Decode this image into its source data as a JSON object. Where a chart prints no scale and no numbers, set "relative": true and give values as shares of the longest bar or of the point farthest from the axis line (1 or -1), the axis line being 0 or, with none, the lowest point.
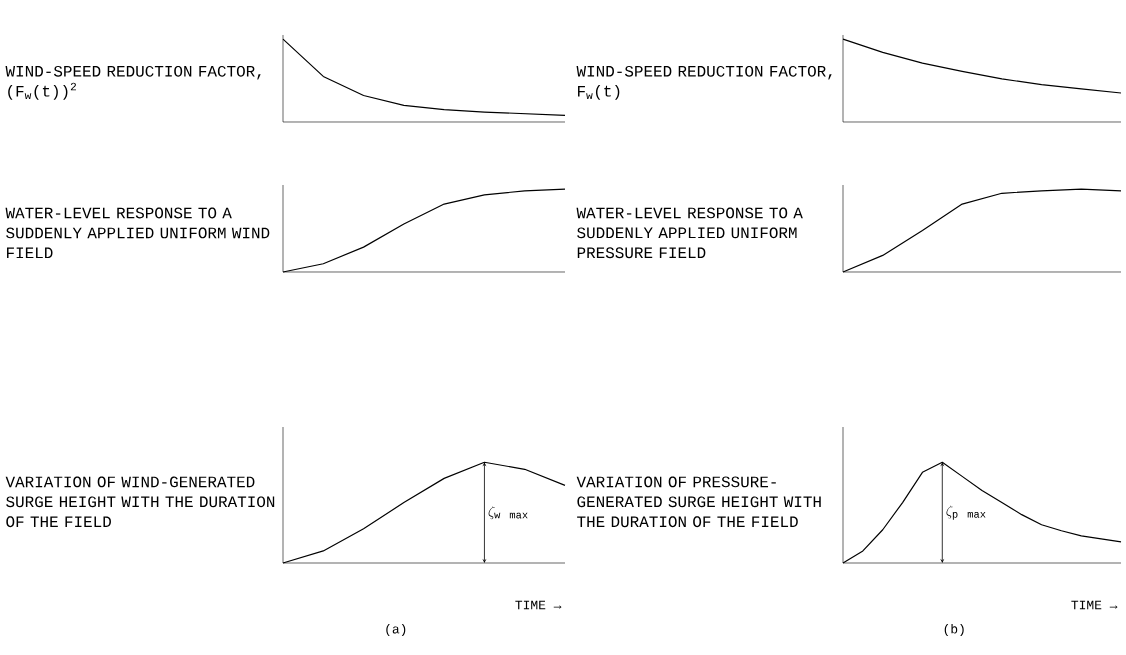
{
  "chart_data": [
    {
      "type": "line",
      "relative": true,
      "color": "#000000",
      "ylabel": "WIND-SPEED REDUCTION FACTOR, (F$_{w}$(t))$^{2}$",
      "categories": [
        null,
        null,
        null,
        null,
        null,
        null,
        null,
        null
      ],
      "values": [
        1.0,
        0.55,
        0.32,
        0.2,
        0.15,
        0.12,
        0.1,
        0.08
      ]
    },
    {
      "type": "line",
      "relative": true,
      "color": "#000000",
      "ylabel": "WIND-SPEED REDUCTION FACTOR, F$_{w}$(t)",
      "categories": [
        null,
        null,
        null,
        null,
        null,
        null,
        null,
        null
      ],
      "values": [
        1.0,
        0.84,
        0.71,
        0.61,
        0.52,
        0.45,
        0.4,
        0.35
      ]
    },
    {
      "type": "line",
      "relative": true,
      "color": "#000000",
      "ylabel": "WATER-LEVEL RESPONSE TO A SUDDENLY APPLIED UNIFORM WIND FIELD",
      "categories": [
        null,
        null,
        null,
        null,
        null,
        null,
        null,
        null
      ],
      "values": [
        0,
        0.1,
        0.3,
        0.58,
        0.82,
        0.93,
        0.98,
        1.0
      ]
    },
    {
      "type": "line",
      "relative": true,
      "color": "#000000",
      "ylabel": "WATER-LEVEL RESPONSE TO A SUDDENLY APPLIED UNIFORM PRESSURE FIELD",
      "categories": [
        null,
        null,
        null,
        null,
        null,
        null,
        null,
        null
      ],
      "values": [
        0,
        0.2,
        0.5,
        0.82,
        0.95,
        0.98,
        1.0,
        0.98
      ]
    },
    {
      "type": "line",
      "relative": true,
      "color": "#000000",
      "ylabel": "VARIATION OF WIND-GENERATED SURGE HEIGHT WITH THE DURATION OF THE FIELD",
      "xlabel": "TIME →",
      "categories": [
        null,
        null,
        null,
        null,
        null,
        null,
        null,
        null
      ],
      "values": [
        0,
        0.12,
        0.34,
        0.6,
        0.84,
        1.0,
        0.93,
        0.77
      ],
      "annotations": [
        {
          "text": "\\zeta_{\\mathrm{w\\ max}}"
        },
        "(a)"
      ]
    },
    {
      "type": "line",
      "relative": true,
      "color": "#000000",
      "ylabel": "VARIATION OF PRESSURE-GENERATED SURGE HEIGHT WITH THE DURATION OF THE FIELD",
      "xlabel": "TIME →",
      "categories": [
        null,
        null,
        null,
        null,
        null,
        null,
        null,
        null,
        null,
        null,
        null,
        null,
        null,
        null,
        null
      ],
      "values": [
        0,
        0.12,
        0.33,
        0.6,
        0.9,
        1.0,
        0.86,
        0.72,
        0.6,
        0.48,
        0.38,
        0.32,
        0.27,
        0.24,
        0.21
      ],
      "annotations": [
        {
          "text": "\\zeta_{\\mathrm{p\\ max}}"
        },
        "(b)"
      ]
    }
  ]
}
